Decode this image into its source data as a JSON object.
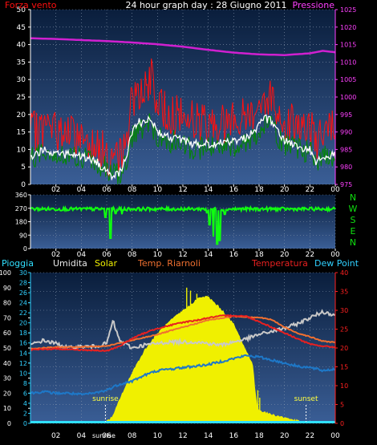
{
  "title": "24 hour graph day : 28 Giugno 2011",
  "colors": {
    "background": "#000000",
    "plot_top": "#0a1e3c",
    "plot_bottom": "#3a5e96",
    "grid": "#8a9ab0",
    "left_axis": "#ffffff",
    "right_axis_top": "#ff40ff",
    "right_axis_bottom": "#ff2020",
    "cyan_axis": "#30d0ff",
    "gust": "#ff1010",
    "wind": "#008800",
    "avg": "#ffffff",
    "pressure": "#d020d0",
    "direction": "#10ff10",
    "direction_labels": "#10e010",
    "solar": "#f0f000",
    "humidity": "#c8c8c8",
    "dewpoint": "#1e78c8",
    "temperature": "#e82020",
    "indoor": "#f07030",
    "rain": "#30e0ff"
  },
  "chart_data": [
    {
      "type": "line",
      "id": "wind-pressure",
      "title": "24 hour graph day : 28 Giugno 2011",
      "legend": {
        "left": "Forza vento",
        "right": "Pressione"
      },
      "x_ticks": [
        "02",
        "04",
        "06",
        "08",
        "10",
        "12",
        "14",
        "16",
        "18",
        "20",
        "22",
        "00"
      ],
      "x_range_hours": [
        0,
        24
      ],
      "ylim_left": [
        0,
        50
      ],
      "y_ticks_left": [
        "0",
        "5",
        "10",
        "15",
        "20",
        "25",
        "30",
        "35",
        "40",
        "45",
        "50"
      ],
      "ylim_right": [
        975,
        1025
      ],
      "y_ticks_right": [
        "975",
        "980",
        "985",
        "990",
        "995",
        "1000",
        "1005",
        "1010",
        "1015",
        "1020",
        "1025"
      ],
      "gust_keyframes": [
        [
          0,
          12
        ],
        [
          1,
          14
        ],
        [
          2,
          13
        ],
        [
          3,
          12
        ],
        [
          4,
          11
        ],
        [
          5,
          10
        ],
        [
          6,
          6
        ],
        [
          6.5,
          3
        ],
        [
          7,
          5
        ],
        [
          7.5,
          10
        ],
        [
          8,
          22
        ],
        [
          8.5,
          25
        ],
        [
          9,
          24
        ],
        [
          9.5,
          28
        ],
        [
          10,
          20
        ],
        [
          11,
          18
        ],
        [
          12,
          17
        ],
        [
          13,
          16
        ],
        [
          14,
          15
        ],
        [
          15,
          15
        ],
        [
          16,
          16
        ],
        [
          17,
          17
        ],
        [
          18,
          20
        ],
        [
          18.5,
          23
        ],
        [
          19,
          22
        ],
        [
          19.5,
          18
        ],
        [
          20,
          16
        ],
        [
          21,
          15
        ],
        [
          22,
          14
        ],
        [
          22.5,
          10
        ],
        [
          23,
          12
        ],
        [
          24,
          13
        ]
      ],
      "wind_keyframes": [
        [
          0,
          6
        ],
        [
          1,
          8
        ],
        [
          2,
          7
        ],
        [
          3,
          7
        ],
        [
          4,
          6
        ],
        [
          5,
          5
        ],
        [
          6,
          3
        ],
        [
          6.5,
          1
        ],
        [
          7,
          2
        ],
        [
          7.5,
          5
        ],
        [
          8,
          12
        ],
        [
          8.5,
          15
        ],
        [
          9,
          14
        ],
        [
          9.5,
          16
        ],
        [
          10,
          12
        ],
        [
          11,
          11
        ],
        [
          12,
          10
        ],
        [
          13,
          9
        ],
        [
          14,
          9
        ],
        [
          15,
          10
        ],
        [
          16,
          10
        ],
        [
          17,
          11
        ],
        [
          18,
          14
        ],
        [
          18.5,
          16
        ],
        [
          19,
          15
        ],
        [
          19.5,
          12
        ],
        [
          20,
          10
        ],
        [
          21,
          9
        ],
        [
          22,
          8
        ],
        [
          22.5,
          5
        ],
        [
          23,
          6
        ],
        [
          24,
          7
        ]
      ],
      "avg_keyframes": [
        [
          0,
          8
        ],
        [
          1,
          10
        ],
        [
          2,
          9
        ],
        [
          3,
          8.5
        ],
        [
          4,
          8
        ],
        [
          5,
          7
        ],
        [
          6,
          4
        ],
        [
          6.5,
          2
        ],
        [
          7,
          3.5
        ],
        [
          7.5,
          7
        ],
        [
          8,
          15
        ],
        [
          8.5,
          18
        ],
        [
          9,
          17
        ],
        [
          9.5,
          19
        ],
        [
          10,
          15
        ],
        [
          11,
          13.5
        ],
        [
          12,
          12.5
        ],
        [
          13,
          11.5
        ],
        [
          14,
          11.5
        ],
        [
          15,
          12
        ],
        [
          16,
          12.5
        ],
        [
          17,
          13.5
        ],
        [
          18,
          17
        ],
        [
          18.5,
          19
        ],
        [
          19,
          18
        ],
        [
          19.5,
          15
        ],
        [
          20,
          12.5
        ],
        [
          21,
          11
        ],
        [
          22,
          10
        ],
        [
          22.5,
          6
        ],
        [
          23,
          7.5
        ],
        [
          24,
          8.5
        ]
      ],
      "pressure_keyframes": [
        [
          0,
          1016.8
        ],
        [
          2,
          1016.6
        ],
        [
          4,
          1016.3
        ],
        [
          6,
          1016.0
        ],
        [
          8,
          1015.6
        ],
        [
          10,
          1015.1
        ],
        [
          12,
          1014.4
        ],
        [
          14,
          1013.5
        ],
        [
          16,
          1012.7
        ],
        [
          18,
          1012.2
        ],
        [
          20,
          1012.0
        ],
        [
          22,
          1012.5
        ],
        [
          23,
          1013.2
        ],
        [
          24,
          1012.8
        ]
      ]
    },
    {
      "type": "line",
      "id": "wind-direction",
      "x_ticks": [
        "02",
        "04",
        "06",
        "08",
        "10",
        "12",
        "14",
        "16",
        "18",
        "20",
        "22",
        "00"
      ],
      "ylim": [
        0,
        360
      ],
      "y_ticks": [
        "0",
        "90",
        "180",
        "270",
        "360"
      ],
      "direction_labels": [
        "N",
        "W",
        "S",
        "E",
        "N"
      ],
      "base_direction_deg": 265,
      "dips": [
        [
          5.9,
          210
        ],
        [
          6.3,
          70
        ],
        [
          6.7,
          235
        ],
        [
          7.2,
          230
        ],
        [
          13.9,
          240
        ],
        [
          14.1,
          160
        ],
        [
          14.4,
          80
        ],
        [
          14.7,
          30
        ],
        [
          14.9,
          55
        ],
        [
          15.3,
          230
        ]
      ]
    },
    {
      "type": "line",
      "id": "weather",
      "legend": [
        "Pioggia",
        "Umidita",
        "Solar",
        "Temp. Riarnoli",
        "Temperatura",
        "Dew Point"
      ],
      "x_ticks": [
        "02",
        "04",
        "sunrise",
        "06",
        "08",
        "10",
        "12",
        "14",
        "16",
        "18",
        "20",
        "22",
        "00"
      ],
      "sunrise_hour": 5.9,
      "sunset_hour": 21.7,
      "annotations": [
        "sunrise",
        "sunset"
      ],
      "ylim_left1": [
        0,
        100
      ],
      "y_ticks_left1": [
        "0",
        "10",
        "20",
        "30",
        "40",
        "50",
        "60",
        "70",
        "80",
        "90",
        "100"
      ],
      "ylim_left2": [
        0,
        30
      ],
      "y_ticks_left2": [
        "0",
        "2",
        "4",
        "6",
        "8",
        "10",
        "12",
        "14",
        "16",
        "18",
        "20",
        "22",
        "24",
        "26",
        "28",
        "30"
      ],
      "ylim_right": [
        0,
        40
      ],
      "y_ticks_right": [
        "0",
        "5",
        "10",
        "15",
        "20",
        "25",
        "30",
        "35",
        "40"
      ],
      "solar_keyframes": [
        [
          0,
          0
        ],
        [
          5.8,
          0
        ],
        [
          6.5,
          5
        ],
        [
          7,
          16
        ],
        [
          8,
          34
        ],
        [
          9,
          49
        ],
        [
          10,
          60
        ],
        [
          11,
          68
        ],
        [
          12,
          75
        ],
        [
          12.5,
          78
        ],
        [
          13,
          82
        ],
        [
          13.5,
          84
        ],
        [
          14,
          84
        ],
        [
          14.5,
          80
        ],
        [
          15,
          76
        ],
        [
          16,
          66
        ],
        [
          17,
          48
        ],
        [
          17.5,
          40
        ],
        [
          17.8,
          14
        ],
        [
          18,
          9
        ],
        [
          19,
          6
        ],
        [
          20,
          4
        ],
        [
          21,
          2
        ],
        [
          21.7,
          0
        ],
        [
          24,
          0
        ]
      ],
      "humidity_keyframes": [
        [
          0,
          52
        ],
        [
          1,
          55
        ],
        [
          2,
          53
        ],
        [
          3,
          50
        ],
        [
          4,
          51
        ],
        [
          5,
          51
        ],
        [
          6,
          53
        ],
        [
          6.5,
          68
        ],
        [
          7,
          55
        ],
        [
          8,
          50
        ],
        [
          9,
          52
        ],
        [
          10,
          53
        ],
        [
          11,
          54
        ],
        [
          12,
          54
        ],
        [
          13,
          54
        ],
        [
          14,
          53
        ],
        [
          15,
          52
        ],
        [
          16,
          54
        ],
        [
          17,
          56
        ],
        [
          18,
          59
        ],
        [
          19,
          61
        ],
        [
          20,
          63
        ],
        [
          21,
          66
        ],
        [
          22,
          70
        ],
        [
          23,
          74
        ],
        [
          24,
          72
        ]
      ],
      "dewpoint_keyframes": [
        [
          0,
          20
        ],
        [
          1,
          21
        ],
        [
          2,
          20
        ],
        [
          3,
          20
        ],
        [
          4,
          19
        ],
        [
          5,
          20
        ],
        [
          6,
          22
        ],
        [
          7,
          26
        ],
        [
          8,
          28
        ],
        [
          9,
          32
        ],
        [
          10,
          35
        ],
        [
          11,
          36
        ],
        [
          12,
          37
        ],
        [
          13,
          38
        ],
        [
          14,
          39
        ],
        [
          15,
          41
        ],
        [
          16,
          43
        ],
        [
          17,
          45
        ],
        [
          18,
          44
        ],
        [
          19,
          42
        ],
        [
          20,
          40
        ],
        [
          21,
          38
        ],
        [
          22,
          37
        ],
        [
          23,
          35
        ],
        [
          24,
          36
        ]
      ],
      "temperature_keyframes": [
        [
          0,
          19.5
        ],
        [
          2,
          19.8
        ],
        [
          4,
          19.5
        ],
        [
          6,
          19.2
        ],
        [
          7,
          20.5
        ],
        [
          8,
          22.5
        ],
        [
          9,
          24
        ],
        [
          10,
          25.2
        ],
        [
          11,
          26
        ],
        [
          12,
          26.8
        ],
        [
          13,
          27.3
        ],
        [
          14,
          28
        ],
        [
          15,
          28.5
        ],
        [
          16,
          28.6
        ],
        [
          17,
          28.4
        ],
        [
          18,
          27
        ],
        [
          19,
          25.5
        ],
        [
          20,
          24
        ],
        [
          21,
          22.5
        ],
        [
          22,
          21
        ],
        [
          23,
          20.5
        ],
        [
          24,
          20.2
        ]
      ],
      "indoor_keyframes": [
        [
          0,
          19.8
        ],
        [
          2,
          20.2
        ],
        [
          4,
          20.3
        ],
        [
          6,
          20.5
        ],
        [
          8,
          22
        ],
        [
          10,
          23.6
        ],
        [
          12,
          25.5
        ],
        [
          14,
          27.4
        ],
        [
          16,
          28.4
        ],
        [
          18,
          28.1
        ],
        [
          19,
          27.5
        ],
        [
          20,
          25.5
        ],
        [
          21,
          24
        ],
        [
          22,
          23
        ],
        [
          23,
          21.8
        ],
        [
          24,
          21.5
        ]
      ],
      "rain_mm": 0
    }
  ]
}
